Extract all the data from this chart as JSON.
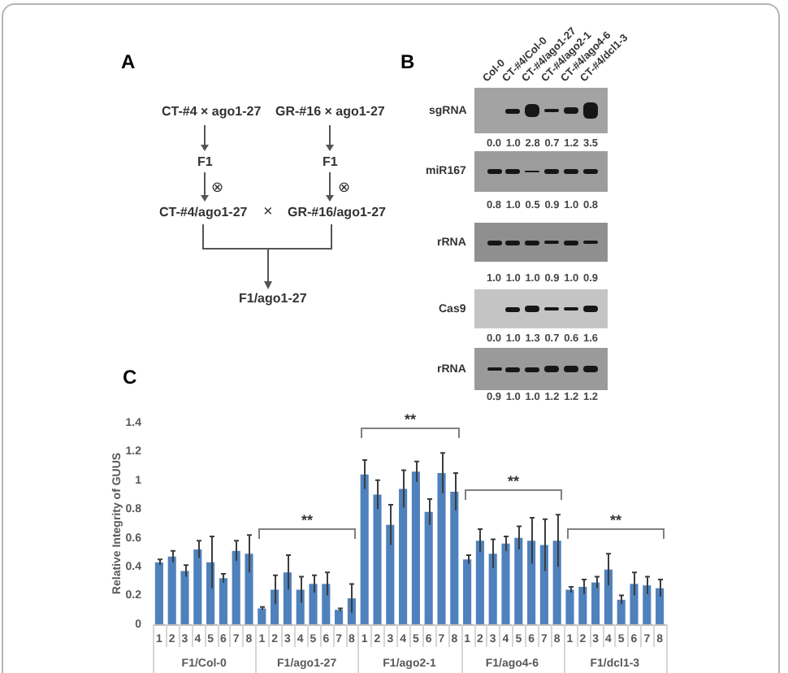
{
  "chart_data": [
    {
      "type": "other",
      "title": "A",
      "annotations": [
        "CT-#4 × ago1-27",
        "GR-#16 × ago1-27",
        "F1",
        "F1",
        "⊗",
        "⊗",
        "CT-#4/ago1-27",
        "×",
        "GR-#16/ago1-27",
        "F1/ago1-27"
      ]
    },
    {
      "type": "other",
      "title": "B",
      "categories": [
        "Col-0",
        "CT-#4/Col-0",
        "CT-#4/ago1-27",
        "CT-#4/ago2-1",
        "CT-#4/ago4-6",
        "CT-#4/dcl1-3"
      ],
      "series": [
        {
          "name": "sgRNA",
          "values": [
            0,
            1,
            2.8,
            0.7,
            1.2,
            3.5
          ],
          "value_labels": [
            "0.0",
            "1.0",
            "2.8",
            "0.7",
            "1.2",
            "3.5"
          ]
        },
        {
          "name": "miR167",
          "values": [
            0.8,
            1,
            0.5,
            0.9,
            1,
            0.8
          ],
          "value_labels": [
            "0.8",
            "1.0",
            "0.5",
            "0.9",
            "1.0",
            "0.8"
          ]
        },
        {
          "name": "rRNA",
          "values": [
            1,
            1,
            1,
            0.9,
            1,
            0.9
          ],
          "value_labels": [
            "1.0",
            "1.0",
            "1.0",
            "0.9",
            "1.0",
            "0.9"
          ]
        },
        {
          "name": "Cas9",
          "values": [
            0,
            1,
            1.3,
            0.7,
            0.6,
            1.6
          ],
          "value_labels": [
            "0.0",
            "1.0",
            "1.3",
            "0.7",
            "0.6",
            "1.6"
          ]
        },
        {
          "name": "rRNA",
          "values": [
            0.9,
            1,
            1,
            1.2,
            1.2,
            1.2
          ],
          "value_labels": [
            "0.9",
            "1.0",
            "1.0",
            "1.2",
            "1.2",
            "1.2"
          ]
        }
      ]
    },
    {
      "type": "bar",
      "title": "C",
      "ylabel": "Relative Integrity of GUUS",
      "categories": [
        "1",
        "2",
        "3",
        "4",
        "5",
        "6",
        "7",
        "8",
        "1",
        "2",
        "3",
        "4",
        "5",
        "6",
        "7",
        "8",
        "1",
        "2",
        "3",
        "4",
        "5",
        "6",
        "7",
        "8",
        "1",
        "2",
        "3",
        "4",
        "5",
        "6",
        "7",
        "8",
        "1",
        "2",
        "3",
        "4",
        "5",
        "6",
        "7",
        "8"
      ],
      "values": [
        0.43,
        0.47,
        0.37,
        0.52,
        0.43,
        0.32,
        0.51,
        0.49,
        0.11,
        0.24,
        0.36,
        0.24,
        0.28,
        0.28,
        0.1,
        0.18,
        1.04,
        0.9,
        0.69,
        0.94,
        1.06,
        0.78,
        1.05,
        0.92,
        0.45,
        0.58,
        0.49,
        0.56,
        0.6,
        0.58,
        0.55,
        0.58,
        0.24,
        0.26,
        0.29,
        0.38,
        0.17,
        0.28,
        0.27,
        0.25
      ],
      "errors": [
        0.02,
        0.04,
        0.04,
        0.06,
        0.18,
        0.03,
        0.07,
        0.13,
        0.01,
        0.1,
        0.12,
        0.09,
        0.06,
        0.08,
        0.01,
        0.1,
        0.1,
        0.1,
        0.14,
        0.13,
        0.07,
        0.09,
        0.14,
        0.13,
        0.03,
        0.08,
        0.1,
        0.05,
        0.08,
        0.16,
        0.18,
        0.18,
        0.02,
        0.05,
        0.04,
        0.11,
        0.03,
        0.08,
        0.06,
        0.06
      ],
      "color": "#4f81bd",
      "ylim": [
        0,
        1.4
      ],
      "yticks": [
        0,
        0.2,
        0.4,
        0.6,
        0.8,
        1,
        1.2,
        1.4
      ],
      "annotations": [
        "**",
        "**",
        "**",
        "**",
        "F1/Col-0",
        "F1/ago1-27",
        "F1/ago2-1",
        "F1/ago4-6",
        "F1/dcl1-3"
      ]
    }
  ]
}
